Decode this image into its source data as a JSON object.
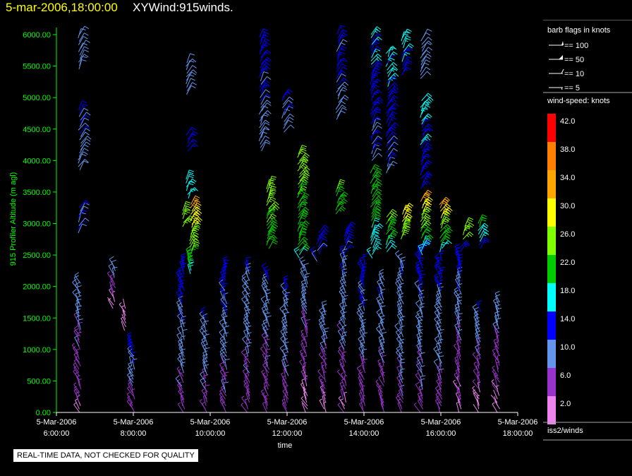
{
  "title": {
    "date_time": "5-mar-2006,18:00:00",
    "product": "XYWind:915winds."
  },
  "footer_note": "REAL-TIME DATA, NOT CHECKED FOR QUALITY",
  "legend": {
    "barb_header": "barb flags in knots",
    "barb_items": [
      "== 100",
      "== 50",
      "== 10",
      "== 5"
    ],
    "speed_header": "wind-speed: knots",
    "speed_bins": [
      {
        "label": "42.0",
        "color": "#ff0000"
      },
      {
        "label": "38.0",
        "color": "#ff7f00"
      },
      {
        "label": "34.0",
        "color": "#ffa500"
      },
      {
        "label": "30.0",
        "color": "#ffff00"
      },
      {
        "label": "26.0",
        "color": "#7fff00"
      },
      {
        "label": "22.0",
        "color": "#00cc00"
      },
      {
        "label": "18.0",
        "color": "#00ffff"
      },
      {
        "label": "14.0",
        "color": "#0000ff"
      },
      {
        "label": "10.0",
        "color": "#6495ed"
      },
      {
        "label": "6.0",
        "color": "#9932cc"
      },
      {
        "label": "2.0",
        "color": "#ee82ee"
      }
    ],
    "source": "iss2/winds"
  },
  "chart_data": {
    "type": "scatter",
    "title": "5-mar-2006,18:00:00  XYWind:915winds.",
    "xlabel": "time",
    "ylabel": "915 Profiler Altitude (m agl)",
    "xlim": [
      "5-Mar-2006 6:00:00",
      "5-Mar-2006 18:00:00"
    ],
    "ylim": [
      0,
      6000
    ],
    "y_ticks": [
      "0.00",
      "500.00",
      "1000.00",
      "1500.00",
      "2000.00",
      "2500.00",
      "3000.00",
      "3500.00",
      "4000.00",
      "4500.00",
      "5000.00",
      "5500.00",
      "6000.00"
    ],
    "x_ticks": [
      {
        "date": "5-Mar-2006",
        "time": "6:00:00",
        "hour": 6
      },
      {
        "date": "5-Mar-2006",
        "time": "8:00:00",
        "hour": 8
      },
      {
        "date": "5-Mar-2006",
        "time": "10:00:00",
        "hour": 10
      },
      {
        "date": "5-Mar-2006",
        "time": "12:00:00",
        "hour": 12
      },
      {
        "date": "5-Mar-2006",
        "time": "14:00:00",
        "hour": 14
      },
      {
        "date": "5-Mar-2006",
        "time": "16:00:00",
        "hour": 16
      },
      {
        "date": "5-Mar-2006",
        "time": "18:00:00",
        "hour": 18
      }
    ],
    "segments": [
      {
        "hour": 6.6,
        "bottom": 0,
        "top": 2050,
        "speed_low": 4,
        "speed_high": 11
      },
      {
        "hour": 6.6,
        "bottom": 2850,
        "top": 3250,
        "speed_low": 12,
        "speed_high": 13
      },
      {
        "hour": 6.6,
        "bottom": 3850,
        "top": 4800,
        "speed_low": 10,
        "speed_high": 12
      },
      {
        "hour": 6.6,
        "bottom": 5450,
        "top": 6000,
        "speed_low": 10,
        "speed_high": 11
      },
      {
        "hour": 7.5,
        "bottom": 1650,
        "top": 2300,
        "speed_low": 2,
        "speed_high": 10
      },
      {
        "hour": 7.8,
        "bottom": 1300,
        "top": 1650,
        "speed_low": 2,
        "speed_high": 3
      },
      {
        "hour": 8.0,
        "bottom": 0,
        "top": 1100,
        "speed_low": 5,
        "speed_high": 14
      },
      {
        "hour": 9.3,
        "bottom": 2950,
        "top": 3200,
        "speed_low": 25,
        "speed_high": 27
      },
      {
        "hour": 9.5,
        "bottom": 2200,
        "top": 3300,
        "speed_low": 19,
        "speed_high": 33
      },
      {
        "hour": 9.3,
        "bottom": 0,
        "top": 2350,
        "speed_low": 6,
        "speed_high": 15
      },
      {
        "hour": 9.4,
        "bottom": 3400,
        "top": 3700,
        "speed_low": 17,
        "speed_high": 19
      },
      {
        "hour": 9.4,
        "bottom": 4150,
        "top": 4400,
        "speed_low": 13,
        "speed_high": 14
      },
      {
        "hour": 9.4,
        "bottom": 5050,
        "top": 5550,
        "speed_low": 10,
        "speed_high": 11
      },
      {
        "hour": 9.9,
        "bottom": 0,
        "top": 1500,
        "speed_low": 6,
        "speed_high": 12
      },
      {
        "hour": 10.4,
        "bottom": 0,
        "top": 2300,
        "speed_low": 6,
        "speed_high": 14
      },
      {
        "hour": 11.0,
        "bottom": 0,
        "top": 2300,
        "speed_low": 6,
        "speed_high": 12
      },
      {
        "hour": 11.3,
        "bottom": 4150,
        "top": 5950,
        "speed_low": 10,
        "speed_high": 14
      },
      {
        "hour": 11.5,
        "bottom": 2600,
        "top": 3600,
        "speed_low": 22,
        "speed_high": 27
      },
      {
        "hour": 11.5,
        "bottom": 0,
        "top": 2200,
        "speed_low": 5,
        "speed_high": 12
      },
      {
        "hour": 12.0,
        "bottom": 0,
        "top": 2000,
        "speed_low": 6,
        "speed_high": 12
      },
      {
        "hour": 11.9,
        "bottom": 4450,
        "top": 5000,
        "speed_low": 11,
        "speed_high": 13
      },
      {
        "hour": 12.3,
        "bottom": 2450,
        "top": 4100,
        "speed_low": 20,
        "speed_high": 26
      },
      {
        "hour": 12.5,
        "bottom": 0,
        "top": 2300,
        "speed_low": 2,
        "speed_high": 12
      },
      {
        "hour": 12.8,
        "bottom": 2400,
        "top": 2850,
        "speed_low": 12,
        "speed_high": 13
      },
      {
        "hour": 13.0,
        "bottom": 0,
        "top": 1600,
        "speed_low": 3,
        "speed_high": 12
      },
      {
        "hour": 13.3,
        "bottom": 3150,
        "top": 3550,
        "speed_low": 22,
        "speed_high": 24
      },
      {
        "hour": 13.3,
        "bottom": 4650,
        "top": 6000,
        "speed_low": 11,
        "speed_high": 13
      },
      {
        "hour": 13.5,
        "bottom": 0,
        "top": 2900,
        "speed_low": 4,
        "speed_high": 14
      },
      {
        "hour": 14.0,
        "bottom": 0,
        "top": 2350,
        "speed_low": 5,
        "speed_high": 14
      },
      {
        "hour": 14.2,
        "bottom": 2450,
        "top": 3800,
        "speed_low": 17,
        "speed_high": 24
      },
      {
        "hour": 14.2,
        "bottom": 4000,
        "top": 6000,
        "speed_low": 11,
        "speed_high": 17
      },
      {
        "hour": 14.5,
        "bottom": 0,
        "top": 2100,
        "speed_low": 5,
        "speed_high": 12
      },
      {
        "hour": 14.6,
        "bottom": 2550,
        "top": 3100,
        "speed_low": 18,
        "speed_high": 25
      },
      {
        "hour": 14.6,
        "bottom": 3800,
        "top": 5700,
        "speed_low": 11,
        "speed_high": 17
      },
      {
        "hour": 15.0,
        "bottom": 0,
        "top": 2400,
        "speed_low": 7,
        "speed_high": 12
      },
      {
        "hour": 15.0,
        "bottom": 2750,
        "top": 3200,
        "speed_low": 24,
        "speed_high": 32
      },
      {
        "hour": 15.0,
        "bottom": 5350,
        "top": 5950,
        "speed_low": 15,
        "speed_high": 18
      },
      {
        "hour": 15.5,
        "bottom": 0,
        "top": 2600,
        "speed_low": 6,
        "speed_high": 14
      },
      {
        "hour": 15.5,
        "bottom": 2500,
        "top": 3400,
        "speed_low": 17,
        "speed_high": 33
      },
      {
        "hour": 15.5,
        "bottom": 3550,
        "top": 4950,
        "speed_low": 13,
        "speed_high": 18
      },
      {
        "hour": 15.5,
        "bottom": 5300,
        "top": 5950,
        "speed_low": 10,
        "speed_high": 11
      },
      {
        "hour": 16.0,
        "bottom": 0,
        "top": 2400,
        "speed_low": 6,
        "speed_high": 14
      },
      {
        "hour": 16.0,
        "bottom": 2550,
        "top": 3300,
        "speed_low": 17,
        "speed_high": 33
      },
      {
        "hour": 16.5,
        "bottom": 0,
        "top": 2600,
        "speed_low": 3,
        "speed_high": 14
      },
      {
        "hour": 16.6,
        "bottom": 2750,
        "top": 2950,
        "speed_low": 24,
        "speed_high": 26
      },
      {
        "hour": 17.0,
        "bottom": 0,
        "top": 1600,
        "speed_low": 2,
        "speed_high": 12
      },
      {
        "hour": 17.0,
        "bottom": 2600,
        "top": 3000,
        "speed_low": 14,
        "speed_high": 22
      },
      {
        "hour": 17.5,
        "bottom": 0,
        "top": 1750,
        "speed_low": 2,
        "speed_high": 11
      }
    ]
  }
}
